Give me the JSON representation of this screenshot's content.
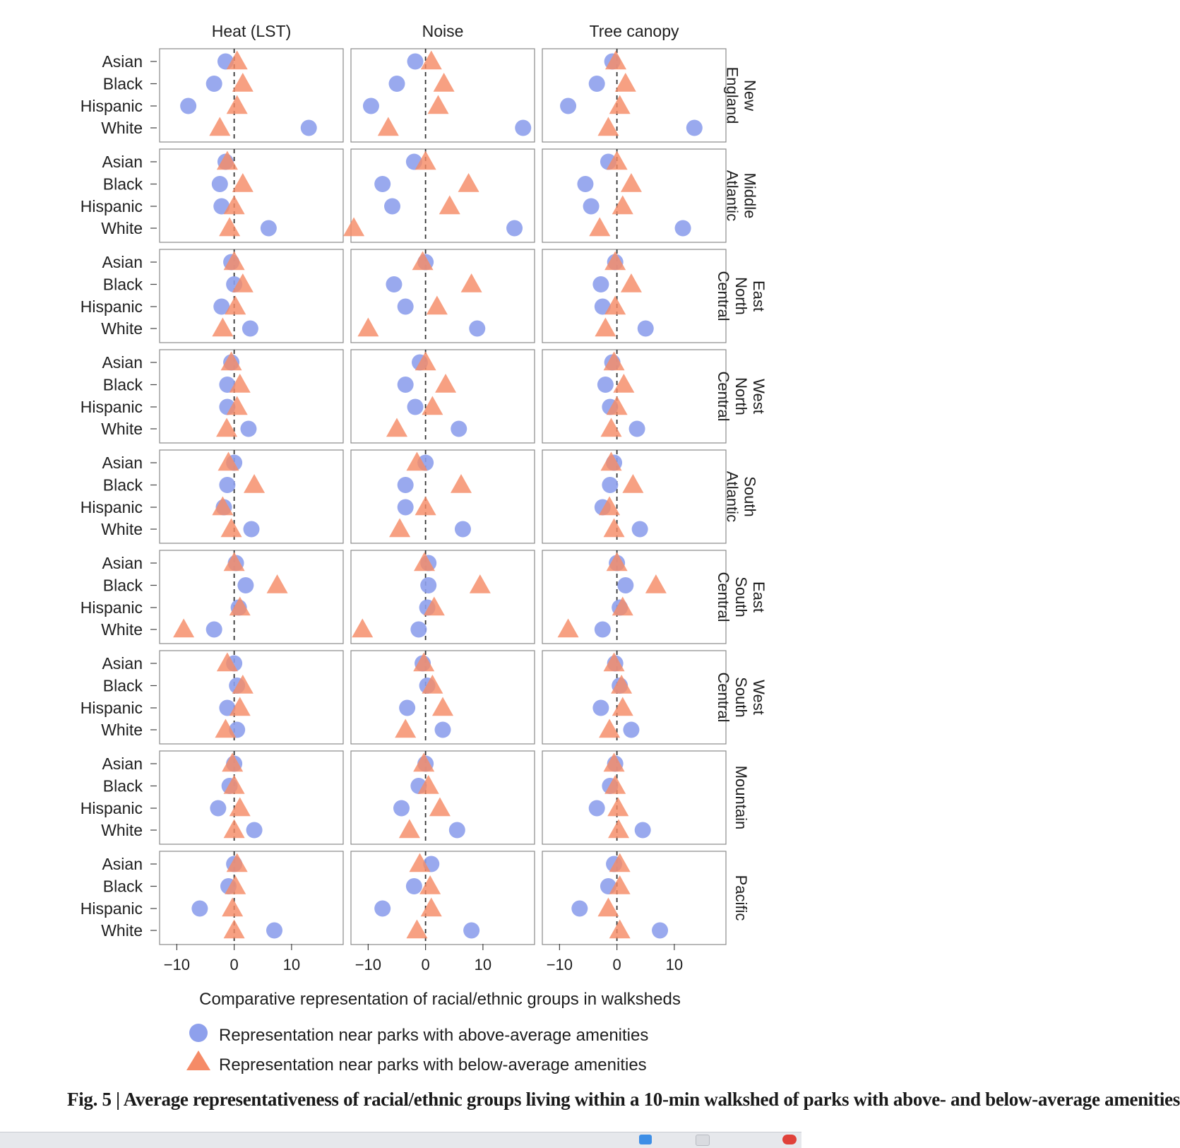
{
  "chart_data": {
    "type": "scatter",
    "columns": [
      "Heat (LST)",
      "Noise",
      "Tree canopy"
    ],
    "rows": [
      "New England",
      "Middle Atlantic",
      "East North Central",
      "West North Central",
      "South Atlantic",
      "East South Central",
      "West South Central",
      "Mountain",
      "Pacific"
    ],
    "categories": [
      "Asian",
      "Black",
      "Hispanic",
      "White"
    ],
    "xlabel": "Comparative representation of racial/ethnic groups in walksheds",
    "xlim": [
      -13,
      19
    ],
    "xticks": [
      -10,
      0,
      10
    ],
    "xtick_labels": [
      "−10",
      "0",
      "10"
    ],
    "legend": [
      {
        "marker": "circle",
        "label": "Representation near parks with above-average amenities"
      },
      {
        "marker": "triangle",
        "label": "Representation near parks with below-average amenities"
      }
    ],
    "colors": {
      "above": "#8ea0ec",
      "below": "#f58b67"
    },
    "series": [
      {
        "name": "Representation near parks with above-average amenities",
        "marker": "circle",
        "values": {
          "New England": {
            "Heat (LST)": [
              -1.5,
              -3.5,
              -8,
              13
            ],
            "Noise": [
              -1.8,
              -5,
              -9.5,
              17
            ],
            "Tree canopy": [
              -0.8,
              -3.5,
              -8.5,
              13.5
            ]
          },
          "Middle Atlantic": {
            "Heat (LST)": [
              -1.5,
              -2.5,
              -2.2,
              6
            ],
            "Noise": [
              -2,
              -7.5,
              -5.8,
              15.5
            ],
            "Tree canopy": [
              -1.5,
              -5.5,
              -4.5,
              11.5
            ]
          },
          "East North Central": {
            "Heat (LST)": [
              -0.5,
              0,
              -2.2,
              2.8
            ],
            "Noise": [
              0,
              -5.5,
              -3.5,
              9
            ],
            "Tree canopy": [
              -0.3,
              -2.8,
              -2.5,
              5
            ]
          },
          "West North Central": {
            "Heat (LST)": [
              -0.5,
              -1.2,
              -1.2,
              2.5
            ],
            "Noise": [
              -1,
              -3.5,
              -1.8,
              5.8
            ],
            "Tree canopy": [
              -0.8,
              -2,
              -1.2,
              3.5
            ]
          },
          "South Atlantic": {
            "Heat (LST)": [
              0,
              -1.2,
              -1.8,
              3
            ],
            "Noise": [
              0,
              -3.5,
              -3.5,
              6.5
            ],
            "Tree canopy": [
              -0.5,
              -1.2,
              -2.5,
              4
            ]
          },
          "East South Central": {
            "Heat (LST)": [
              0.3,
              2,
              0.8,
              -3.5
            ],
            "Noise": [
              0.5,
              0.5,
              0.3,
              -1.2
            ],
            "Tree canopy": [
              0,
              1.5,
              0.5,
              -2.5
            ]
          },
          "West South Central": {
            "Heat (LST)": [
              0,
              0.5,
              -1.2,
              0.5
            ],
            "Noise": [
              -0.5,
              0.3,
              -3.2,
              3
            ],
            "Tree canopy": [
              -0.3,
              0.5,
              -2.8,
              2.5
            ]
          },
          "Mountain": {
            "Heat (LST)": [
              0,
              -0.8,
              -2.8,
              3.5
            ],
            "Noise": [
              0,
              -1.2,
              -4.2,
              5.5
            ],
            "Tree canopy": [
              -0.3,
              -1.2,
              -3.5,
              4.5
            ]
          },
          "Pacific": {
            "Heat (LST)": [
              0,
              -1,
              -6,
              7
            ],
            "Noise": [
              1,
              -2,
              -7.5,
              8
            ],
            "Tree canopy": [
              -0.5,
              -1.5,
              -6.5,
              7.5
            ]
          }
        }
      },
      {
        "name": "Representation near parks with below-average amenities",
        "marker": "triangle",
        "values": {
          "New England": {
            "Heat (LST)": [
              0.5,
              1.5,
              0.5,
              -2.5
            ],
            "Noise": [
              1,
              3.2,
              2.2,
              -6.5
            ],
            "Tree canopy": [
              -0.2,
              1.5,
              0.5,
              -1.5
            ]
          },
          "Middle Atlantic": {
            "Heat (LST)": [
              -1.2,
              1.5,
              0,
              -0.8
            ],
            "Noise": [
              0,
              7.5,
              4.2,
              -12.5
            ],
            "Tree canopy": [
              0,
              2.5,
              1,
              -3
            ]
          },
          "East North Central": {
            "Heat (LST)": [
              0,
              1.5,
              0.2,
              -2
            ],
            "Noise": [
              -0.5,
              8,
              2,
              -10
            ],
            "Tree canopy": [
              -0.3,
              2.5,
              -0.3,
              -2
            ]
          },
          "West North Central": {
            "Heat (LST)": [
              -0.5,
              1,
              0.5,
              -1.3
            ],
            "Noise": [
              0,
              3.5,
              1.2,
              -5
            ],
            "Tree canopy": [
              -0.5,
              1.2,
              0,
              -1
            ]
          },
          "South Atlantic": {
            "Heat (LST)": [
              -1,
              3.5,
              -2,
              -0.5
            ],
            "Noise": [
              -1.5,
              6.2,
              0,
              -4.5
            ],
            "Tree canopy": [
              -1,
              2.8,
              -1.3,
              -0.5
            ]
          },
          "East South Central": {
            "Heat (LST)": [
              0,
              7.5,
              1,
              -8.8
            ],
            "Noise": [
              -0.2,
              9.5,
              1.5,
              -11
            ],
            "Tree canopy": [
              0,
              6.8,
              1,
              -8.5
            ]
          },
          "West South Central": {
            "Heat (LST)": [
              -1.2,
              1.5,
              1,
              -1.5
            ],
            "Noise": [
              -0.3,
              1.2,
              3,
              -3.5
            ],
            "Tree canopy": [
              -0.5,
              0.8,
              1,
              -1.3
            ]
          },
          "Mountain": {
            "Heat (LST)": [
              -0.3,
              0,
              1,
              0
            ],
            "Noise": [
              -0.3,
              0.5,
              2.5,
              -2.8
            ],
            "Tree canopy": [
              -0.5,
              -0.3,
              0.2,
              0.3
            ]
          },
          "Pacific": {
            "Heat (LST)": [
              0.5,
              0.2,
              -0.3,
              0
            ],
            "Noise": [
              -1,
              0.8,
              1,
              -1.5
            ],
            "Tree canopy": [
              0.5,
              0.5,
              -1.5,
              0.5
            ]
          }
        }
      }
    ]
  },
  "strip_labels": [
    "New England",
    "Middle Atlantic",
    "East North Central",
    "West North Central",
    "South Atlantic",
    "East South Central",
    "West South Central",
    "Mountain",
    "Pacific"
  ],
  "caption": "Fig. 5 | Average representativeness of racial/ethnic groups living within a 10-min walkshed of parks with above- and below-average amenities"
}
